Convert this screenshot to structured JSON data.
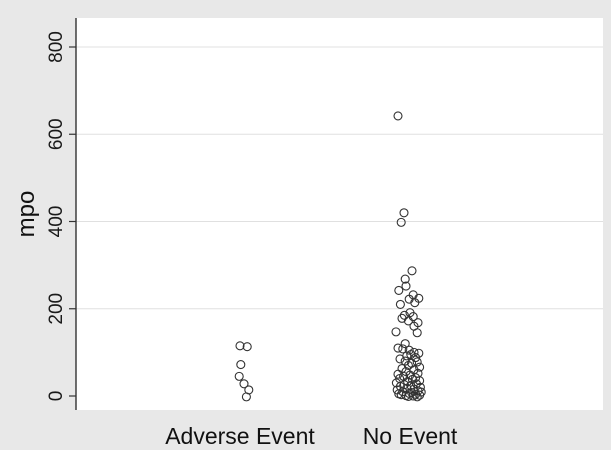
{
  "chart_data": {
    "type": "scatter",
    "title": "",
    "xlabel": "",
    "ylabel": "mpo",
    "ylim": [
      0,
      800
    ],
    "yticks": [
      "0",
      "200",
      "400",
      "600",
      "800"
    ],
    "grid": true,
    "categories": [
      "Adverse Event",
      "No Event"
    ],
    "series": [
      {
        "category": "Adverse Event",
        "points": [
          {
            "jitter": 0.0,
            "y": 115
          },
          {
            "jitter": 0.18,
            "y": 113
          },
          {
            "jitter": 0.02,
            "y": 72
          },
          {
            "jitter": -0.02,
            "y": 45
          },
          {
            "jitter": 0.1,
            "y": 28
          },
          {
            "jitter": 0.22,
            "y": 14
          },
          {
            "jitter": 0.16,
            "y": -2
          }
        ]
      },
      {
        "category": "No Event",
        "points": [
          {
            "jitter": -0.3,
            "y": 642
          },
          {
            "jitter": -0.15,
            "y": 420
          },
          {
            "jitter": -0.22,
            "y": 398
          },
          {
            "jitter": 0.05,
            "y": 287
          },
          {
            "jitter": -0.12,
            "y": 268
          },
          {
            "jitter": -0.1,
            "y": 252
          },
          {
            "jitter": -0.28,
            "y": 242
          },
          {
            "jitter": 0.08,
            "y": 232
          },
          {
            "jitter": 0.22,
            "y": 224
          },
          {
            "jitter": -0.02,
            "y": 222
          },
          {
            "jitter": 0.12,
            "y": 214
          },
          {
            "jitter": -0.24,
            "y": 210
          },
          {
            "jitter": 0.0,
            "y": 191
          },
          {
            "jitter": -0.14,
            "y": 185
          },
          {
            "jitter": 0.08,
            "y": 182
          },
          {
            "jitter": -0.2,
            "y": 178
          },
          {
            "jitter": 0.2,
            "y": 168
          },
          {
            "jitter": -0.04,
            "y": 172
          },
          {
            "jitter": 0.1,
            "y": 160
          },
          {
            "jitter": -0.35,
            "y": 147
          },
          {
            "jitter": 0.18,
            "y": 145
          },
          {
            "jitter": -0.12,
            "y": 120
          },
          {
            "jitter": -0.3,
            "y": 110
          },
          {
            "jitter": -0.18,
            "y": 108
          },
          {
            "jitter": -0.02,
            "y": 105
          },
          {
            "jitter": 0.1,
            "y": 100
          },
          {
            "jitter": 0.22,
            "y": 98
          },
          {
            "jitter": 0.02,
            "y": 95
          },
          {
            "jitter": -0.08,
            "y": 92
          },
          {
            "jitter": 0.14,
            "y": 88
          },
          {
            "jitter": -0.25,
            "y": 85
          },
          {
            "jitter": -0.12,
            "y": 80
          },
          {
            "jitter": 0.18,
            "y": 78
          },
          {
            "jitter": 0.04,
            "y": 75
          },
          {
            "jitter": -0.04,
            "y": 70
          },
          {
            "jitter": 0.24,
            "y": 66
          },
          {
            "jitter": -0.2,
            "y": 63
          },
          {
            "jitter": 0.1,
            "y": 60
          },
          {
            "jitter": -0.1,
            "y": 56
          },
          {
            "jitter": 0.2,
            "y": 52
          },
          {
            "jitter": -0.3,
            "y": 50
          },
          {
            "jitter": 0.0,
            "y": 48
          },
          {
            "jitter": -0.16,
            "y": 45
          },
          {
            "jitter": 0.14,
            "y": 42
          },
          {
            "jitter": -0.26,
            "y": 40
          },
          {
            "jitter": 0.06,
            "y": 38
          },
          {
            "jitter": 0.24,
            "y": 35
          },
          {
            "jitter": -0.06,
            "y": 33
          },
          {
            "jitter": -0.34,
            "y": 30
          },
          {
            "jitter": 0.16,
            "y": 28
          },
          {
            "jitter": -0.14,
            "y": 26
          },
          {
            "jitter": 0.02,
            "y": 24
          },
          {
            "jitter": -0.24,
            "y": 22
          },
          {
            "jitter": 0.26,
            "y": 20
          },
          {
            "jitter": -0.08,
            "y": 18
          },
          {
            "jitter": 0.1,
            "y": 16
          },
          {
            "jitter": -0.32,
            "y": 14
          },
          {
            "jitter": 0.2,
            "y": 12
          },
          {
            "jitter": -0.18,
            "y": 10
          },
          {
            "jitter": 0.04,
            "y": 8
          },
          {
            "jitter": -0.02,
            "y": 6
          },
          {
            "jitter": 0.14,
            "y": 4
          },
          {
            "jitter": -0.22,
            "y": 3
          },
          {
            "jitter": 0.24,
            "y": 2
          },
          {
            "jitter": -0.1,
            "y": 1
          },
          {
            "jitter": 0.08,
            "y": 0
          },
          {
            "jitter": -0.04,
            "y": -1
          },
          {
            "jitter": 0.18,
            "y": -2
          },
          {
            "jitter": -0.28,
            "y": 5
          },
          {
            "jitter": 0.28,
            "y": 9
          }
        ]
      }
    ],
    "colors": {
      "background": "#e8e8e8",
      "plot": "#ffffff",
      "grid": "#e0e0e0",
      "marker": "#333333"
    }
  }
}
